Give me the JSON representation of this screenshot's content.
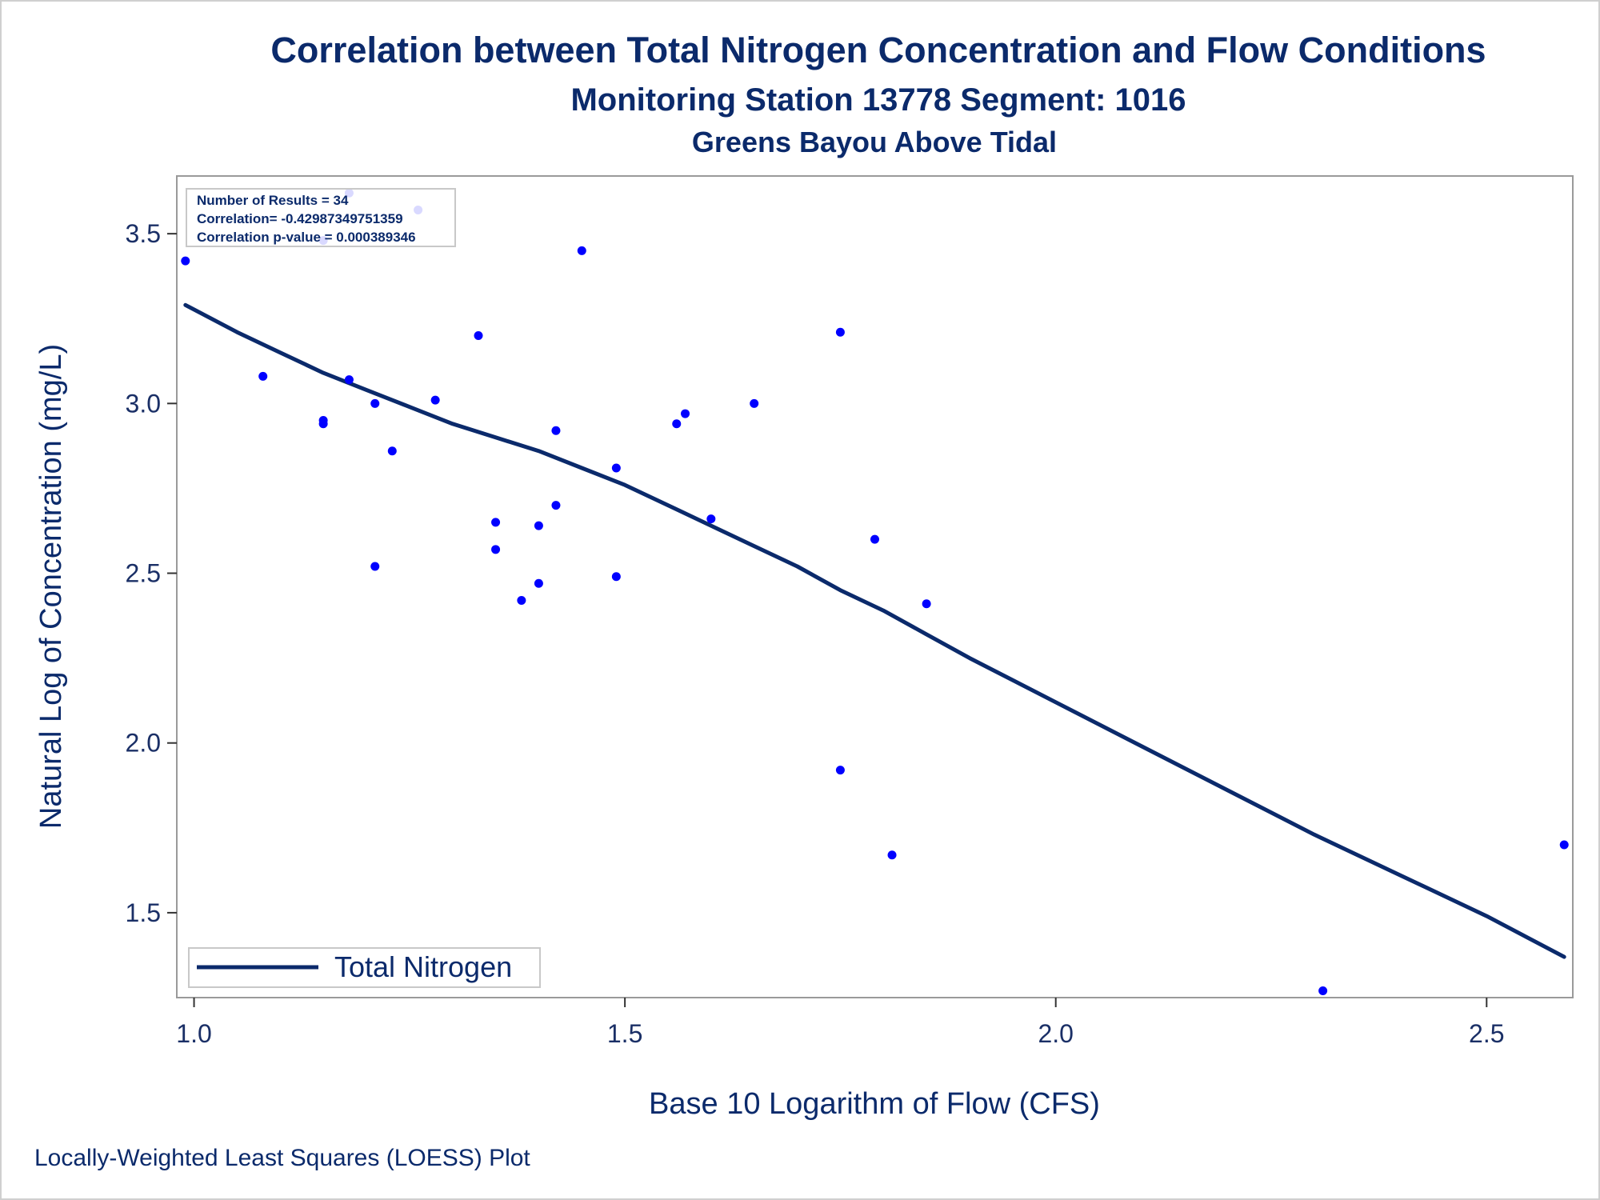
{
  "titles": {
    "title": "Correlation between Total Nitrogen Concentration and Flow Conditions",
    "subtitle1": "Monitoring Station 13778 Segment: 1016",
    "subtitle2": "Greens Bayou Above Tidal"
  },
  "stats": {
    "line1": "Number of Results = 34",
    "line2": "Correlation= -0.42987349751359",
    "line3": "Correlation p-value = 0.000389346"
  },
  "legend": {
    "label": "Total Nitrogen"
  },
  "footnote": "Locally-Weighted Least Squares (LOESS) Plot",
  "colors": {
    "points": "#0000ff",
    "line": "#0b2a6b",
    "text": "#0b2a6b",
    "frame": "#9a9a9a"
  },
  "chart_data": {
    "type": "scatter",
    "title": "Correlation between Total Nitrogen Concentration and Flow Conditions",
    "xlabel": "Base 10 Logarithm of Flow (CFS)",
    "ylabel": "Natural Log of Concentration (mg/L)",
    "xlim": [
      0.98,
      2.6
    ],
    "ylim": [
      1.25,
      3.67
    ],
    "xticks": [
      1.0,
      1.5,
      2.0,
      2.5
    ],
    "xtick_labels": [
      "1.0",
      "1.5",
      "2.0",
      "2.5"
    ],
    "yticks": [
      1.5,
      2.0,
      2.5,
      3.0,
      3.5
    ],
    "ytick_labels": [
      "1.5",
      "2.0",
      "2.5",
      "3.0",
      "3.5"
    ],
    "grid": false,
    "legend_position": "bottom-left",
    "points": [
      {
        "x": 0.99,
        "y": 3.42
      },
      {
        "x": 1.08,
        "y": 3.08
      },
      {
        "x": 1.15,
        "y": 3.48
      },
      {
        "x": 1.15,
        "y": 2.95
      },
      {
        "x": 1.15,
        "y": 2.94
      },
      {
        "x": 1.18,
        "y": 3.62
      },
      {
        "x": 1.18,
        "y": 3.07
      },
      {
        "x": 1.21,
        "y": 3.0
      },
      {
        "x": 1.21,
        "y": 2.52
      },
      {
        "x": 1.23,
        "y": 2.86
      },
      {
        "x": 1.26,
        "y": 3.57
      },
      {
        "x": 1.28,
        "y": 3.01
      },
      {
        "x": 1.33,
        "y": 3.2
      },
      {
        "x": 1.35,
        "y": 2.65
      },
      {
        "x": 1.35,
        "y": 2.57
      },
      {
        "x": 1.38,
        "y": 2.42
      },
      {
        "x": 1.4,
        "y": 2.64
      },
      {
        "x": 1.4,
        "y": 2.47
      },
      {
        "x": 1.42,
        "y": 2.92
      },
      {
        "x": 1.42,
        "y": 2.7
      },
      {
        "x": 1.45,
        "y": 3.45
      },
      {
        "x": 1.49,
        "y": 2.81
      },
      {
        "x": 1.49,
        "y": 2.49
      },
      {
        "x": 1.56,
        "y": 2.94
      },
      {
        "x": 1.57,
        "y": 2.97
      },
      {
        "x": 1.6,
        "y": 2.66
      },
      {
        "x": 1.65,
        "y": 3.0
      },
      {
        "x": 1.75,
        "y": 3.21
      },
      {
        "x": 1.75,
        "y": 1.92
      },
      {
        "x": 1.79,
        "y": 2.6
      },
      {
        "x": 1.81,
        "y": 1.67
      },
      {
        "x": 1.85,
        "y": 2.41
      },
      {
        "x": 2.31,
        "y": 1.27
      },
      {
        "x": 2.59,
        "y": 1.7
      }
    ],
    "series": [
      {
        "name": "Total Nitrogen",
        "type": "line",
        "x": [
          0.99,
          1.05,
          1.1,
          1.15,
          1.2,
          1.25,
          1.3,
          1.35,
          1.4,
          1.45,
          1.5,
          1.55,
          1.6,
          1.65,
          1.7,
          1.75,
          1.8,
          1.85,
          1.9,
          2.0,
          2.1,
          2.2,
          2.3,
          2.4,
          2.5,
          2.59
        ],
        "y": [
          3.29,
          3.21,
          3.15,
          3.09,
          3.04,
          2.99,
          2.94,
          2.9,
          2.86,
          2.81,
          2.76,
          2.7,
          2.64,
          2.58,
          2.52,
          2.45,
          2.39,
          2.32,
          2.25,
          2.12,
          1.99,
          1.86,
          1.73,
          1.61,
          1.49,
          1.37
        ]
      }
    ]
  }
}
